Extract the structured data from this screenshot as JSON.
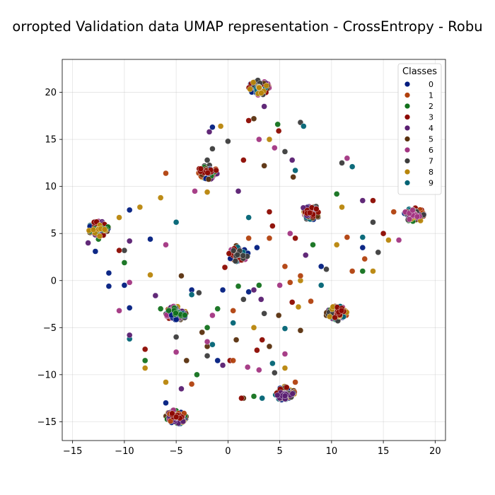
{
  "chart_data": {
    "type": "scatter",
    "title": "orropted Validation data UMAP representation - CrossEntropy - Robu",
    "xlim": [
      -16,
      21
    ],
    "ylim": [
      -17,
      23.5
    ],
    "xticks": [
      -15,
      -10,
      -5,
      0,
      5,
      10,
      15,
      20
    ],
    "yticks": [
      -15,
      -10,
      -5,
      0,
      5,
      10,
      15,
      20
    ],
    "grid": true,
    "legend": {
      "title": "Classes",
      "placement": "top-right"
    },
    "series": [
      {
        "name": "0",
        "color": "#001c7f",
        "points": [
          [
            3,
            20.5
          ],
          [
            -2,
            11.5
          ],
          [
            -12.5,
            5.5
          ],
          [
            1,
            2.8
          ],
          [
            -5,
            -3.5
          ],
          [
            8,
            7.2
          ],
          [
            10.5,
            -3.5
          ],
          [
            5.5,
            -12
          ],
          [
            -5,
            -14.5
          ],
          [
            18,
            7
          ],
          [
            -1.5,
            16.3
          ],
          [
            -9.5,
            7.5
          ],
          [
            -11.5,
            0.8
          ],
          [
            -10,
            -0.5
          ],
          [
            -3.5,
            -1
          ],
          [
            -1,
            -8.5
          ],
          [
            2,
            -1.2
          ],
          [
            9,
            1.5
          ],
          [
            -6,
            -13
          ],
          [
            -0.5,
            -1
          ],
          [
            2.8,
            3.5
          ],
          [
            13,
            3.5
          ],
          [
            -7.5,
            4.4
          ],
          [
            -9.5,
            -2.9
          ],
          [
            -12.8,
            3.1
          ],
          [
            -11.5,
            -0.6
          ]
        ]
      },
      {
        "name": "1",
        "color": "#b1400d",
        "points": [
          [
            3,
            20.5
          ],
          [
            -2,
            11.5
          ],
          [
            -12.5,
            5.5
          ],
          [
            1,
            2.8
          ],
          [
            -5,
            -3.5
          ],
          [
            8,
            7.2
          ],
          [
            10.5,
            -3.5
          ],
          [
            5.5,
            -12
          ],
          [
            -5,
            -14.5
          ],
          [
            18,
            7
          ],
          [
            6,
            -0.2
          ],
          [
            7,
            0.5
          ],
          [
            0.5,
            -3.2
          ],
          [
            -6,
            11.4
          ],
          [
            16,
            7.3
          ],
          [
            13.2,
            2.3
          ],
          [
            5.5,
            1.5
          ],
          [
            -3.5,
            -11
          ],
          [
            6.5,
            -10.8
          ],
          [
            8,
            -2.2
          ],
          [
            12,
            1
          ],
          [
            4,
            4.5
          ],
          [
            2,
            4.5
          ],
          [
            0.5,
            -8.5
          ],
          [
            11.5,
            4.6
          ]
        ]
      },
      {
        "name": "2",
        "color": "#12711c",
        "points": [
          [
            3,
            20.5
          ],
          [
            -2,
            11.5
          ],
          [
            -12.5,
            5.5
          ],
          [
            1,
            2.8
          ],
          [
            -5,
            -3.5
          ],
          [
            8,
            7.2
          ],
          [
            10.5,
            -3.5
          ],
          [
            5.5,
            -12
          ],
          [
            -5,
            -14.5
          ],
          [
            18,
            7
          ],
          [
            -8,
            -8.5
          ],
          [
            -3,
            -10
          ],
          [
            10.5,
            9.2
          ],
          [
            8.2,
            3.8
          ],
          [
            3,
            -0.5
          ],
          [
            -10,
            1.9
          ],
          [
            -6.5,
            -3
          ],
          [
            4.8,
            16.6
          ],
          [
            -2,
            -5
          ],
          [
            1,
            -0.6
          ],
          [
            13,
            1
          ],
          [
            -12.5,
            4.4
          ],
          [
            2.5,
            -12.3
          ],
          [
            -1,
            -3
          ]
        ]
      },
      {
        "name": "3",
        "color": "#8c0800",
        "points": [
          [
            3,
            20.5
          ],
          [
            -2,
            11.5
          ],
          [
            -12.5,
            5.5
          ],
          [
            1,
            2.8
          ],
          [
            -5,
            -3.5
          ],
          [
            8,
            7.2
          ],
          [
            10.5,
            -3.5
          ],
          [
            5.5,
            -12
          ],
          [
            -5,
            -14.5
          ],
          [
            18,
            7
          ],
          [
            2,
            17
          ],
          [
            15,
            5
          ],
          [
            14,
            8.5
          ],
          [
            6.5,
            4.5
          ],
          [
            4.3,
            5.8
          ],
          [
            4,
            7.3
          ],
          [
            1.5,
            12.8
          ],
          [
            -10.5,
            3.2
          ],
          [
            -8,
            -7.3
          ],
          [
            2.8,
            -7.4
          ],
          [
            6.2,
            -2.3
          ],
          [
            0.2,
            -8.5
          ],
          [
            4.9,
            15.9
          ],
          [
            1.3,
            -12.5
          ],
          [
            3.3,
            -6.3
          ],
          [
            -0.3,
            1.4
          ]
        ]
      },
      {
        "name": "4",
        "color": "#591e71",
        "points": [
          [
            3,
            20.5
          ],
          [
            -2,
            11.5
          ],
          [
            -12.5,
            5.5
          ],
          [
            1,
            2.8
          ],
          [
            -5,
            -3.5
          ],
          [
            8,
            7.2
          ],
          [
            10.5,
            -3.5
          ],
          [
            5.5,
            -12
          ],
          [
            -5,
            -14.5
          ],
          [
            18,
            7
          ],
          [
            -7,
            -1.6
          ],
          [
            -9.5,
            -5.8
          ],
          [
            -1.8,
            15.8
          ],
          [
            6.2,
            12.8
          ],
          [
            13,
            8.5
          ],
          [
            7.5,
            2.7
          ],
          [
            2.5,
            -1
          ],
          [
            -0.5,
            -9
          ],
          [
            -4.5,
            -11.5
          ],
          [
            -13.5,
            4
          ],
          [
            3.5,
            18.5
          ],
          [
            -9.5,
            4.2
          ],
          [
            1,
            9.5
          ],
          [
            3.2,
            -2
          ]
        ]
      },
      {
        "name": "5",
        "color": "#592f0d",
        "points": [
          [
            3,
            20.5
          ],
          [
            -2,
            11.5
          ],
          [
            -12.5,
            5.5
          ],
          [
            1,
            2.8
          ],
          [
            -5,
            -3.5
          ],
          [
            8,
            7.2
          ],
          [
            10.5,
            -3.5
          ],
          [
            5.5,
            -12
          ],
          [
            -5,
            -14.5
          ],
          [
            18,
            7
          ],
          [
            2.5,
            17.2
          ],
          [
            7,
            -5.3
          ],
          [
            4.9,
            -3.7
          ],
          [
            -2.5,
            -5.5
          ],
          [
            0.8,
            -6.3
          ],
          [
            -4.5,
            0.5
          ],
          [
            1.5,
            -12.5
          ],
          [
            4,
            -7
          ],
          [
            9.5,
            -3.7
          ],
          [
            6.3,
            11
          ],
          [
            -2,
            -7
          ],
          [
            3.5,
            12.2
          ],
          [
            -4,
            -8.5
          ],
          [
            0.8,
            3.7
          ]
        ]
      },
      {
        "name": "6",
        "color": "#a23582",
        "points": [
          [
            3,
            20.5
          ],
          [
            -2,
            11.5
          ],
          [
            -12.5,
            5.5
          ],
          [
            1,
            2.8
          ],
          [
            -5,
            -3.5
          ],
          [
            8,
            7.2
          ],
          [
            10.5,
            -3.5
          ],
          [
            5.5,
            -12
          ],
          [
            -5,
            -14.5
          ],
          [
            18,
            7
          ],
          [
            3,
            15
          ],
          [
            4.5,
            14.1
          ],
          [
            11.5,
            13
          ],
          [
            -10.5,
            -3.2
          ],
          [
            -6,
            3.8
          ],
          [
            -5,
            -7.6
          ],
          [
            -1.5,
            -3.7
          ],
          [
            3,
            -9.5
          ],
          [
            5.5,
            -7.8
          ],
          [
            5,
            -0.5
          ],
          [
            -3.2,
            9.5
          ],
          [
            6,
            5
          ],
          [
            -9.5,
            -0.2
          ],
          [
            16.5,
            4.3
          ],
          [
            1.9,
            -9.2
          ],
          [
            -2,
            -6.5
          ]
        ]
      },
      {
        "name": "7",
        "color": "#3c3c3c",
        "points": [
          [
            3,
            20.5
          ],
          [
            -2,
            11.5
          ],
          [
            -12.5,
            5.5
          ],
          [
            1,
            2.8
          ],
          [
            -5,
            -3.5
          ],
          [
            8,
            7.2
          ],
          [
            10.5,
            -3.5
          ],
          [
            5.5,
            -12
          ],
          [
            -5,
            -14.5
          ],
          [
            18,
            7
          ],
          [
            -2,
            12.8
          ],
          [
            -1.5,
            14
          ],
          [
            5.5,
            13.7
          ],
          [
            0,
            14.8
          ],
          [
            11,
            12.5
          ],
          [
            14,
            6.2
          ],
          [
            9.5,
            1.2
          ],
          [
            14.5,
            3
          ],
          [
            -10,
            3.2
          ],
          [
            -5,
            -6
          ],
          [
            -2,
            -8
          ],
          [
            4.5,
            -9.8
          ],
          [
            3.5,
            -3.5
          ],
          [
            -2.8,
            -1.3
          ],
          [
            1.5,
            -2
          ],
          [
            7,
            16.8
          ]
        ]
      },
      {
        "name": "8",
        "color": "#b8850a",
        "points": [
          [
            3,
            20.5
          ],
          [
            -2,
            11.5
          ],
          [
            -12.5,
            5.5
          ],
          [
            1,
            2.8
          ],
          [
            -5,
            -3.5
          ],
          [
            8,
            7.2
          ],
          [
            10.5,
            -3.5
          ],
          [
            5.5,
            -12
          ],
          [
            -5,
            -14.5
          ],
          [
            18,
            7
          ],
          [
            -8.5,
            7.8
          ],
          [
            -6.5,
            8.8
          ],
          [
            -10.5,
            6.7
          ],
          [
            14,
            1
          ],
          [
            10.5,
            3.8
          ],
          [
            11,
            7.8
          ],
          [
            -7.5,
            0.6
          ],
          [
            -2,
            9.4
          ],
          [
            -0.7,
            16.4
          ],
          [
            4,
            15
          ],
          [
            7,
            0
          ],
          [
            2.5,
            -5
          ],
          [
            5.5,
            -9.3
          ],
          [
            -8,
            -9.3
          ],
          [
            -6,
            -10.8
          ],
          [
            6.8,
            -2.8
          ],
          [
            15.5,
            4.3
          ]
        ]
      },
      {
        "name": "9",
        "color": "#006374",
        "points": [
          [
            3,
            20.5
          ],
          [
            -2,
            11.5
          ],
          [
            -12.5,
            5.5
          ],
          [
            1,
            2.8
          ],
          [
            -5,
            -3.5
          ],
          [
            8,
            7.2
          ],
          [
            10.5,
            -3.5
          ],
          [
            5.5,
            -12
          ],
          [
            -5,
            -14.5
          ],
          [
            18,
            7
          ],
          [
            7.3,
            16.4
          ],
          [
            12,
            12.1
          ],
          [
            -5,
            6.2
          ],
          [
            5.5,
            -5.1
          ],
          [
            2,
            6.7
          ],
          [
            13,
            4.6
          ],
          [
            9,
            -0.5
          ],
          [
            0.5,
            -4.5
          ],
          [
            -3.5,
            -1.5
          ],
          [
            -1.5,
            -6.8
          ],
          [
            4.3,
            -8.8
          ],
          [
            -9.5,
            -6.2
          ],
          [
            6.5,
            11.7
          ],
          [
            3.3,
            -12.5
          ]
        ]
      }
    ]
  }
}
